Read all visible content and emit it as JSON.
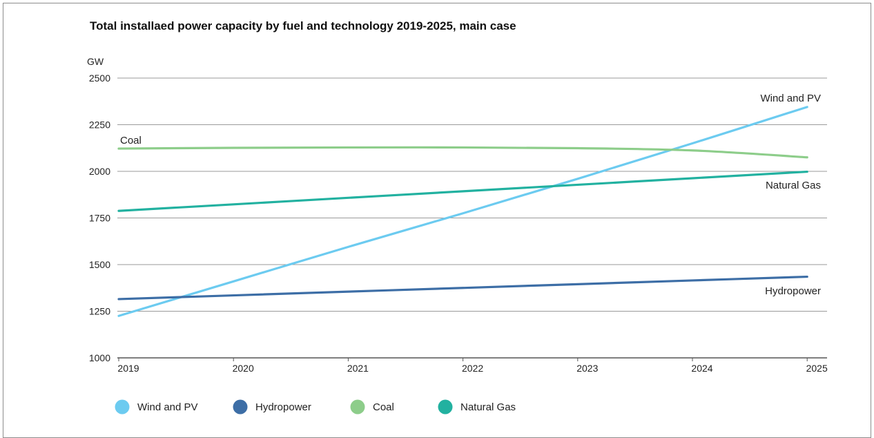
{
  "chart_data": {
    "type": "line",
    "title": "Total installaed power capacity by fuel and technology 2019-2025, main case",
    "ylabel": "GW",
    "xlabel": "",
    "x": [
      "2019",
      "2020",
      "2021",
      "2022",
      "2023",
      "2024",
      "2025"
    ],
    "ylim": [
      1000,
      2500
    ],
    "yticks": [
      1000,
      1250,
      1500,
      1750,
      2000,
      2250,
      2500
    ],
    "grid": true,
    "legend_position": "bottom",
    "series": [
      {
        "name": "Wind and PV",
        "color": "#6ccbf0",
        "values": [
          1225,
          1410,
          1595,
          1775,
          1960,
          2150,
          2345
        ]
      },
      {
        "name": "Hydropower",
        "color": "#3d6ea6",
        "values": [
          1315,
          1335,
          1355,
          1375,
          1395,
          1415,
          1435
        ]
      },
      {
        "name": "Coal",
        "color": "#8dcd8a",
        "values": [
          2122,
          2126,
          2128,
          2128,
          2124,
          2112,
          2075
        ]
      },
      {
        "name": "Natural Gas",
        "color": "#22b1a0",
        "values": [
          1788,
          1823,
          1858,
          1893,
          1928,
          1963,
          1998
        ]
      }
    ],
    "annotations": [
      "Wind and PV",
      "Coal",
      "Natural Gas",
      "Hydropower"
    ]
  }
}
